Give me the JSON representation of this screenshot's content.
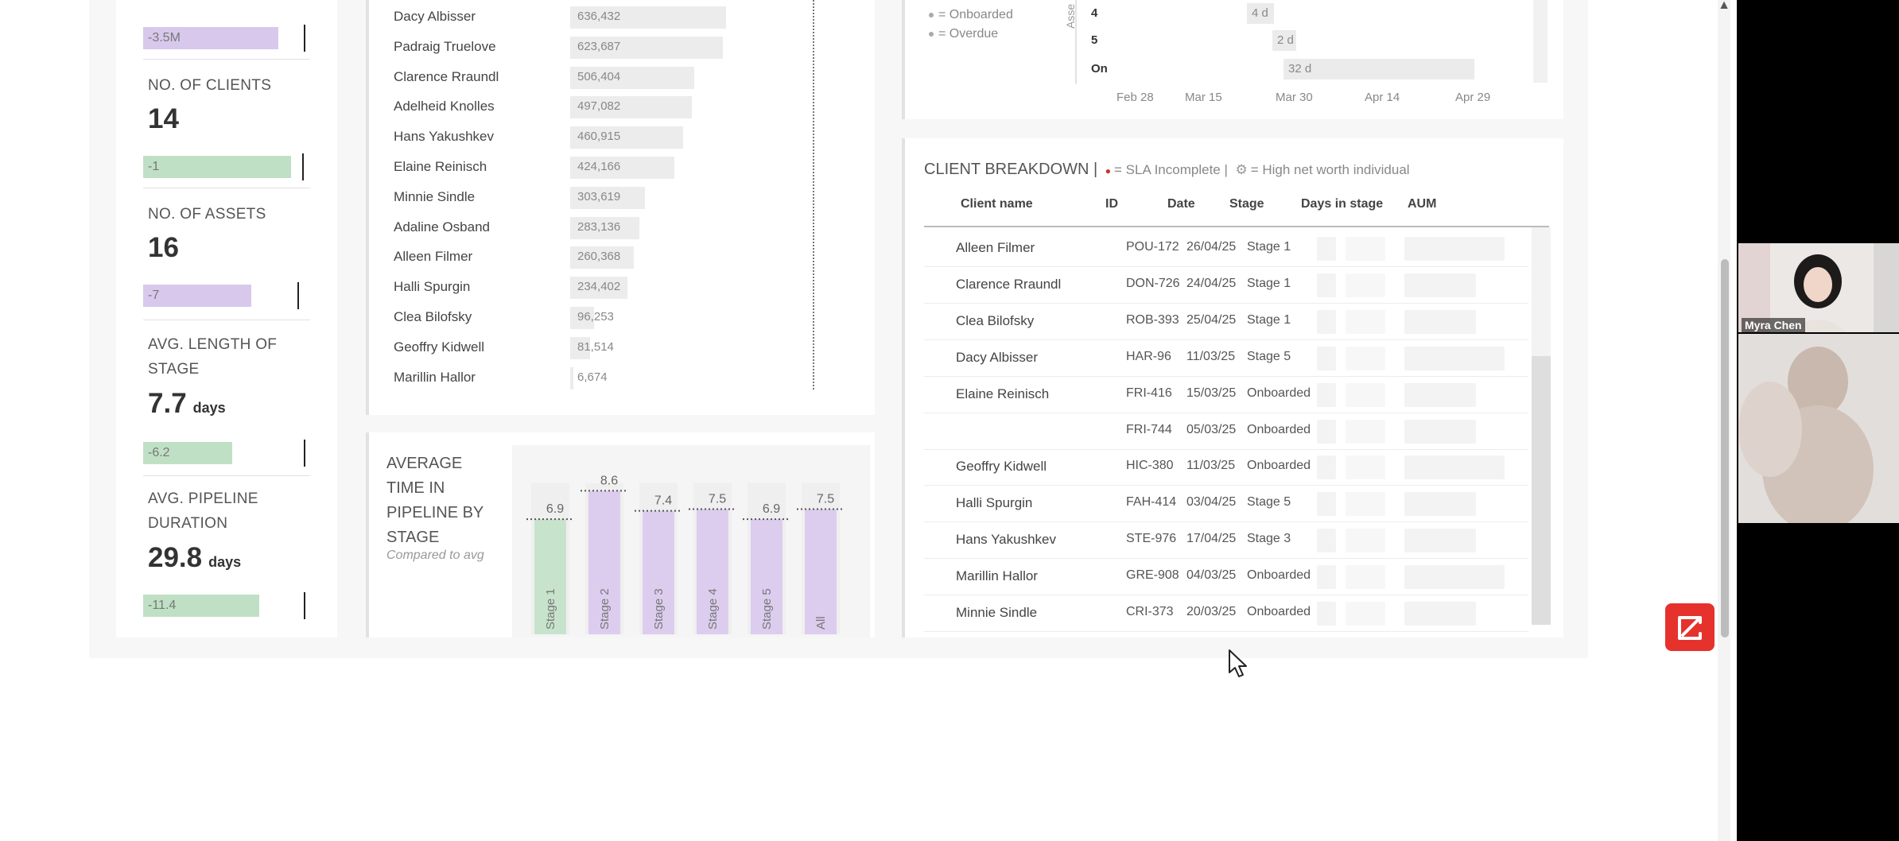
{
  "kpis": [
    {
      "label": "NO. OF CLIENTS",
      "value": "14",
      "delta": "-1",
      "delta_color": "green"
    },
    {
      "label": "NO. OF ASSETS",
      "value": "16",
      "delta": "-7",
      "delta_color": "purple"
    },
    {
      "label": "AVG. LENGTH OF STAGE",
      "value": "7.7",
      "unit": "days",
      "delta": "-6.2",
      "delta_color": "green"
    },
    {
      "label": "AVG. PIPELINE DURATION",
      "value": "29.8",
      "unit": "days",
      "delta": "-11.4",
      "delta_color": "green"
    }
  ],
  "top_delta": "-3.5M",
  "aum_list": [
    {
      "name": "Dacy Albisser",
      "value": "636,432"
    },
    {
      "name": "Padraig Truelove",
      "value": "623,687"
    },
    {
      "name": "Clarence Rraundl",
      "value": "506,404"
    },
    {
      "name": "Adelheid Knolles",
      "value": "497,082"
    },
    {
      "name": "Hans Yakushkev",
      "value": "460,915"
    },
    {
      "name": "Elaine Reinisch",
      "value": "424,166"
    },
    {
      "name": "Minnie Sindle",
      "value": "303,619"
    },
    {
      "name": "Adaline Osband",
      "value": "283,136"
    },
    {
      "name": "Alleen Filmer",
      "value": "260,368"
    },
    {
      "name": "Halli Spurgin",
      "value": "234,402"
    },
    {
      "name": "Clea Bilofsky",
      "value": "96,253"
    },
    {
      "name": "Geoffry Kidwell",
      "value": "81,514"
    },
    {
      "name": "Marillin Hallor",
      "value": "6,674"
    }
  ],
  "pipeline": {
    "title": "AVERAGE TIME IN PIPELINE BY STAGE",
    "subtitle": "Compared to avg",
    "chart_data": {
      "type": "bar",
      "categories": [
        "Stage 1",
        "Stage 2",
        "Stage 3",
        "Stage 4",
        "Stage 5",
        "All"
      ],
      "values": [
        6.9,
        8.6,
        7.4,
        7.5,
        6.9,
        7.5
      ],
      "labels": [
        "6.9",
        "8.6",
        "7.4",
        "7.5",
        "6.9",
        "7.5"
      ],
      "colors": [
        "#c7e3cc",
        "#dccdef",
        "#dccdef",
        "#dccdef",
        "#dccdef",
        "#dccdef"
      ]
    }
  },
  "timeline": {
    "legend": [
      "= Onboarded",
      "= Overdue"
    ],
    "y_label": "Asse",
    "rows": [
      {
        "label": "4",
        "bar_label": "4 d"
      },
      {
        "label": "5",
        "bar_label": "2 d"
      },
      {
        "label": "On",
        "bar_label": "32 d"
      }
    ],
    "ticks": [
      "Feb 28",
      "Mar 15",
      "Mar 30",
      "Apr 14",
      "Apr 29"
    ]
  },
  "client_breakdown": {
    "title": "CLIENT BREAKDOWN |",
    "legend_sla": "= SLA Incomplete |",
    "legend_hnw": "= High net worth individual",
    "headers": [
      "Client name",
      "ID",
      "Date",
      "Stage",
      "Days in stage",
      "AUM"
    ],
    "rows": [
      {
        "name": "Alleen Filmer",
        "id": "POU-172",
        "date": "26/04/25",
        "stage": "Stage 1"
      },
      {
        "name": "Clarence Rraundl",
        "id": "DON-726",
        "date": "24/04/25",
        "stage": "Stage 1"
      },
      {
        "name": "Clea Bilofsky",
        "id": "ROB-393",
        "date": "25/04/25",
        "stage": "Stage 1"
      },
      {
        "name": "Dacy Albisser",
        "id": "HAR-96",
        "date": "11/03/25",
        "stage": "Stage 5"
      },
      {
        "name": "Elaine Reinisch",
        "id": "FRI-416",
        "date": "15/03/25",
        "stage": "Onboarded"
      },
      {
        "name": "",
        "id": "FRI-744",
        "date": "05/03/25",
        "stage": "Onboarded"
      },
      {
        "name": "Geoffry Kidwell",
        "id": "HIC-380",
        "date": "11/03/25",
        "stage": "Onboarded"
      },
      {
        "name": "Halli Spurgin",
        "id": "FAH-414",
        "date": "03/04/25",
        "stage": "Stage 5"
      },
      {
        "name": "Hans Yakushkev",
        "id": "STE-976",
        "date": "17/04/25",
        "stage": "Stage 3"
      },
      {
        "name": "Marillin Hallor",
        "id": "GRE-908",
        "date": "04/03/25",
        "stage": "Onboarded"
      },
      {
        "name": "Minnie Sindle",
        "id": "CRI-373",
        "date": "20/03/25",
        "stage": "Onboarded"
      }
    ]
  },
  "participant": {
    "name": "Myra Chen"
  },
  "icons": {
    "app_button": "zoom-app-icon",
    "cursor": "mouse-cursor-icon",
    "scroll_up": "scroll-up-arrow-icon"
  },
  "colors": {
    "purple_bar": "#d8c9ec",
    "green_bar": "#bfe0c4",
    "app_red": "#e5322d"
  }
}
